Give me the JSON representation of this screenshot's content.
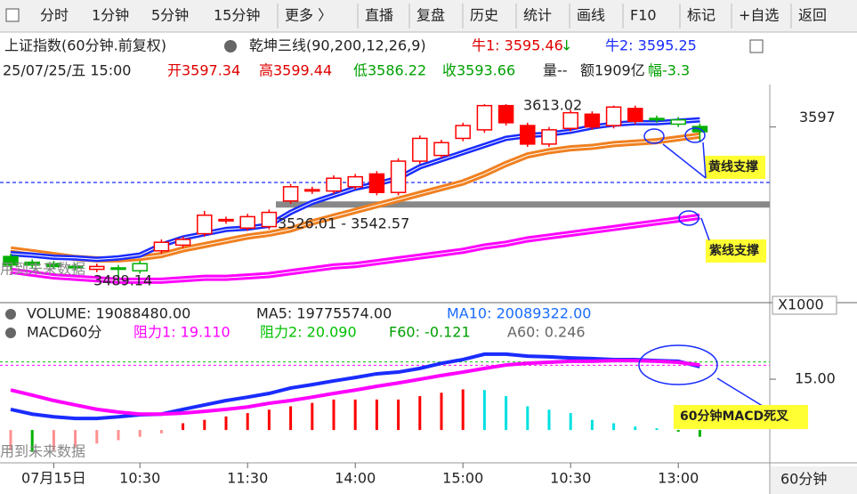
{
  "toolbar": {
    "items": [
      "分时",
      "1分钟",
      "5分钟",
      "15分钟",
      "更多 〉",
      "直播",
      "复盘",
      "历史",
      "统计",
      "画线",
      "F10",
      "标记",
      "+自选",
      "返回"
    ]
  },
  "header": {
    "title": "上证指数(60分钟.前复权)",
    "indicator": "乾坤三线(90,200,12,26,9)",
    "bull1": "牛1: 3595.46",
    "bull2": "牛2: 3595.25"
  },
  "info": {
    "datetime": "25/07/25/五 15:00",
    "open": "开3597.34",
    "high": "高3599.44",
    "low": "低3586.22",
    "close": "收3593.66",
    "volume": "量--",
    "amount": "额1909亿",
    "change": "幅-3.3"
  },
  "volume_line": {
    "volume": "VOLUME: 19088480.00",
    "ma5": "MA5: 19775574.00",
    "ma10": "MA10: 20089322.00",
    "unit": "X1000"
  },
  "macd_line": {
    "title": "MACD60分",
    "r1": "阻力1: 19.110",
    "r2": "阻力2: 20.090",
    "f60": "F60: -0.121",
    "a60": "A60: 0.246"
  },
  "period": "60分钟",
  "chart_data": [
    {
      "type": "candlestick",
      "open": [
        3506,
        3502,
        3501,
        3499,
        3497,
        3498,
        3496,
        3510,
        3514,
        3522,
        3531,
        3526,
        3527,
        3545,
        3552,
        3552,
        3555,
        3564,
        3551,
        3573,
        3577,
        3589,
        3595,
        3612,
        3598,
        3585,
        3596,
        3606,
        3598,
        3610,
        3603,
        3599,
        3597.34
      ],
      "close": [
        3500,
        3500,
        3499,
        3498,
        3499,
        3497,
        3501,
        3516,
        3518,
        3535,
        3532,
        3534,
        3537,
        3555,
        3553,
        3561,
        3562,
        3551,
        3573,
        3589,
        3586,
        3598,
        3612,
        3600,
        3585,
        3595,
        3607,
        3597,
        3611,
        3601,
        3602,
        3602,
        3593.66
      ],
      "high": [
        3508,
        3504,
        3503,
        3501,
        3501,
        3500,
        3503,
        3518,
        3520,
        3538,
        3534,
        3536,
        3539,
        3557,
        3555,
        3563,
        3564,
        3566,
        3575,
        3591,
        3588,
        3600,
        3613.02,
        3613,
        3600,
        3597,
        3609,
        3608,
        3612,
        3612,
        3605,
        3604,
        3599.44
      ],
      "low": [
        3497,
        3498,
        3497,
        3496,
        3495,
        3489.14,
        3494,
        3508,
        3512,
        3520,
        3529,
        3524,
        3525,
        3543,
        3550,
        3550,
        3553,
        3549,
        3549,
        3571,
        3575,
        3587,
        3593,
        3598,
        3583,
        3583,
        3594,
        3595,
        3596,
        3599,
        3600,
        3597,
        3586.22
      ],
      "colors": [
        "#00b000",
        "#00b000",
        "#00b000",
        "#00b000",
        "#ff0000",
        "#00b000",
        "#00b000",
        "#ff0000",
        "#ff0000",
        "#ff0000",
        "#ff0000",
        "#ff0000",
        "#ff0000",
        "#ff0000",
        "#ff0000",
        "#ff0000",
        "#ff0000",
        "#ff0000",
        "#ff0000",
        "#ff0000",
        "#ff0000",
        "#ff0000",
        "#ff0000",
        "#ff0000",
        "#ff0000",
        "#ff0000",
        "#ff0000",
        "#ff0000",
        "#ff0000",
        "#ff0000",
        "#00b000",
        "#00b000",
        "#00b000"
      ],
      "lines": [
        {
          "color": "#ff00ff",
          "values": [
            3496,
            3494,
            3492,
            3491,
            3490,
            3489,
            3489,
            3489,
            3490,
            3491,
            3491,
            3492,
            3493,
            3495,
            3497,
            3499,
            3500,
            3502,
            3504,
            3506,
            3508,
            3510,
            3513,
            3515,
            3518,
            3520,
            3522,
            3524,
            3526,
            3528,
            3530,
            3532,
            3534
          ]
        },
        {
          "color": "#f08020",
          "values": [
            3511,
            3509,
            3507,
            3505,
            3504,
            3504,
            3505,
            3507,
            3511,
            3514,
            3517,
            3520,
            3522,
            3525,
            3530,
            3534,
            3538,
            3542,
            3546,
            3550,
            3554,
            3558,
            3564,
            3571,
            3577,
            3580,
            3582,
            3583,
            3585,
            3586,
            3587,
            3589,
            3591
          ]
        },
        {
          "color": "#1a2cff",
          "values": [
            3508,
            3507,
            3505.5,
            3505,
            3504,
            3505,
            3507,
            3514,
            3519,
            3522,
            3525,
            3526,
            3528,
            3537,
            3544,
            3549,
            3554,
            3557,
            3561,
            3569,
            3574,
            3579,
            3584,
            3589,
            3591,
            3592,
            3594,
            3597,
            3599,
            3600,
            3600,
            3601,
            3602
          ]
        }
      ],
      "reference_lines": [
        {
          "value": 3542.57,
          "color": "#888888"
        },
        {
          "value": 3558,
          "color": "#1a2cff"
        }
      ],
      "ylim": [
        3473.6,
        3626.8
      ],
      "yticks": [
        3597
      ],
      "annotations": [
        "3613.02",
        "3526.01 - 3542.57",
        "3489.14",
        "用到未来数据",
        "黄线支撑",
        "紫线支撑"
      ]
    },
    {
      "type": "macd",
      "categories": [
        null,
        null,
        "07月15日",
        null,
        null,
        null,
        "10:30",
        null,
        null,
        null,
        null,
        "11:30",
        null,
        null,
        null,
        null,
        "14:00",
        null,
        null,
        null,
        null,
        "15:00",
        null,
        null,
        null,
        null,
        "10:30",
        null,
        null,
        null,
        null,
        "13:00",
        null
      ],
      "histogram": [
        -6,
        -6.5,
        -6,
        -5,
        -4,
        -3,
        -2,
        -1,
        2,
        3,
        4,
        5,
        6,
        7,
        8,
        9,
        9,
        9,
        9,
        10,
        11,
        12,
        11.8,
        10,
        7,
        6,
        5,
        3,
        2,
        1,
        0.5,
        -0.5,
        -2
      ],
      "dif": [
        6.1,
        4.7,
        3.9,
        3.4,
        3.4,
        3.9,
        4.5,
        4.7,
        6.1,
        7.4,
        8.7,
        9.7,
        10.8,
        12.4,
        13.4,
        14.5,
        15.5,
        16.6,
        17.1,
        18.2,
        19.7,
        20.8,
        22.4,
        22.4,
        21.8,
        21.6,
        21.3,
        21.1,
        20.8,
        20.8,
        20.5,
        20.3,
        18.7
      ],
      "dea": [
        11.8,
        10.3,
        8.7,
        7.4,
        6.1,
        5.3,
        4.7,
        4.7,
        5.0,
        5.5,
        6.1,
        6.8,
        7.9,
        8.7,
        9.7,
        10.8,
        11.8,
        12.9,
        13.9,
        15.0,
        16.1,
        17.1,
        18.2,
        19.2,
        19.7,
        20.0,
        20.3,
        20.3,
        20.5,
        20.5,
        20.3,
        20.0,
        19.2
      ],
      "dif_color": "#1a2cff",
      "dea_color": "#ff00ff",
      "reference_lines": [
        {
          "value": 19.11,
          "color": "#ff00ff"
        },
        {
          "value": 20.09,
          "color": "#00c000"
        }
      ],
      "ylim": [
        -9.7,
        25
      ],
      "yticks": [
        {
          "value": 15,
          "label": "15.00"
        }
      ],
      "annotations": [
        "用到未来数据",
        "60分钟MACD死叉"
      ]
    }
  ]
}
